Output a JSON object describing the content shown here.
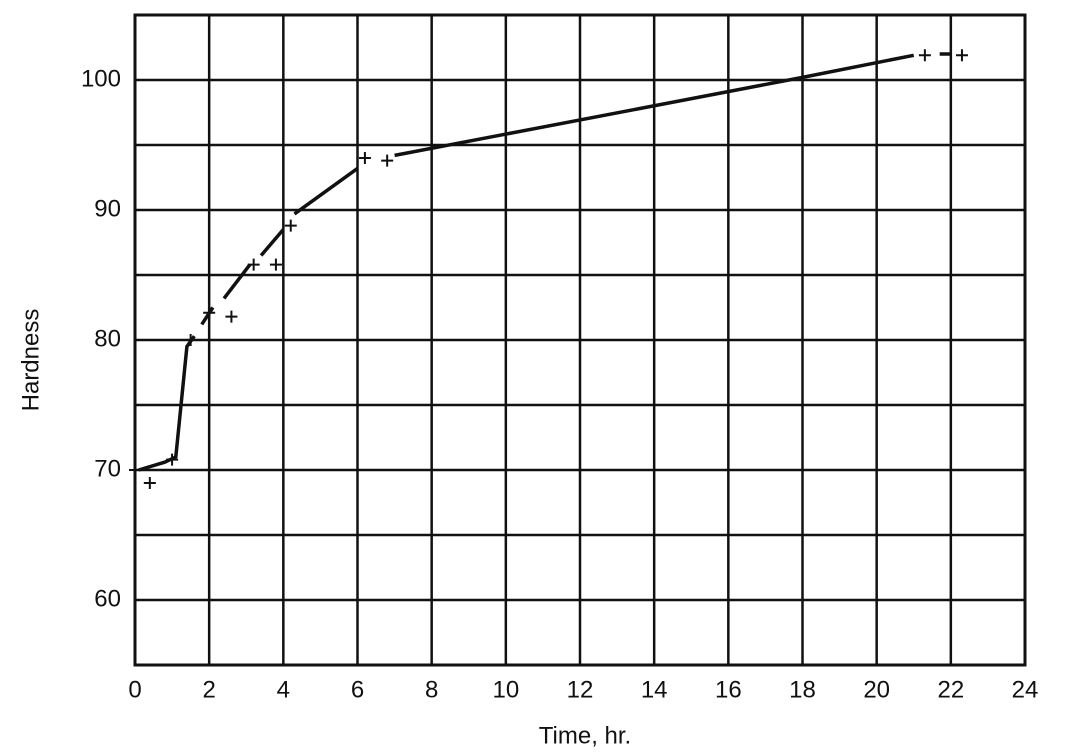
{
  "chart_data": {
    "type": "scatter",
    "x_label": "Time, hr.",
    "y_label": "Hardness",
    "xlim": [
      0,
      24
    ],
    "ylim": [
      55,
      105
    ],
    "xticks": [
      0,
      2,
      4,
      6,
      8,
      10,
      12,
      14,
      16,
      18,
      20,
      22,
      24
    ],
    "yticks": [
      60,
      70,
      80,
      90,
      100
    ],
    "yminorticks": [
      65,
      75,
      85,
      95
    ],
    "grid": true,
    "color": "#111111",
    "series": [
      {
        "type": "line",
        "x": [
          0.1,
          0.8,
          1.1,
          1.4,
          1.6,
          null,
          1.8,
          2.1,
          null,
          2.4,
          3.1,
          null,
          3.4,
          4.0,
          null,
          4.3,
          6.0,
          null,
          7.0,
          18,
          21,
          null,
          21.7,
          22.0
        ],
        "values": [
          70,
          70.6,
          71,
          79.5,
          80.3,
          null,
          81.2,
          82.5,
          null,
          83.2,
          85.8,
          null,
          86.5,
          88.5,
          null,
          89.7,
          93.2,
          null,
          94.2,
          100.2,
          101.9,
          null,
          102,
          102
        ]
      },
      {
        "type": "scatter",
        "x": [
          0,
          0.4,
          1.0,
          1.5,
          2.0,
          2.6,
          3.2,
          3.8,
          4.2,
          6.2,
          6.8,
          21.3,
          22.3
        ],
        "values": [
          70,
          69,
          70.8,
          80,
          82.1,
          81.8,
          85.8,
          85.8,
          88.8,
          94,
          93.8,
          101.9,
          101.9
        ]
      }
    ]
  }
}
